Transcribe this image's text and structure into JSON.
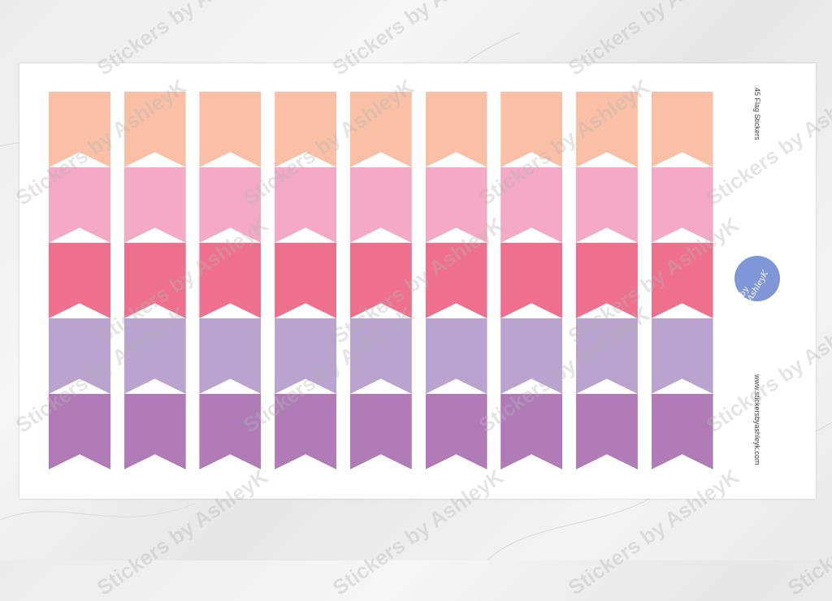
{
  "sheet": {
    "title": "45 Flag Stickers",
    "website": "www.stickersbyashleyk.com",
    "logo_text": "by AshleyK",
    "rows": 5,
    "columns": 9,
    "row_colors": [
      "#f9c0a5",
      "#f4a9c4",
      "#ef6f8e",
      "#b9a3cf",
      "#b07bb7"
    ]
  },
  "watermark": "Stickers by AshleyK"
}
